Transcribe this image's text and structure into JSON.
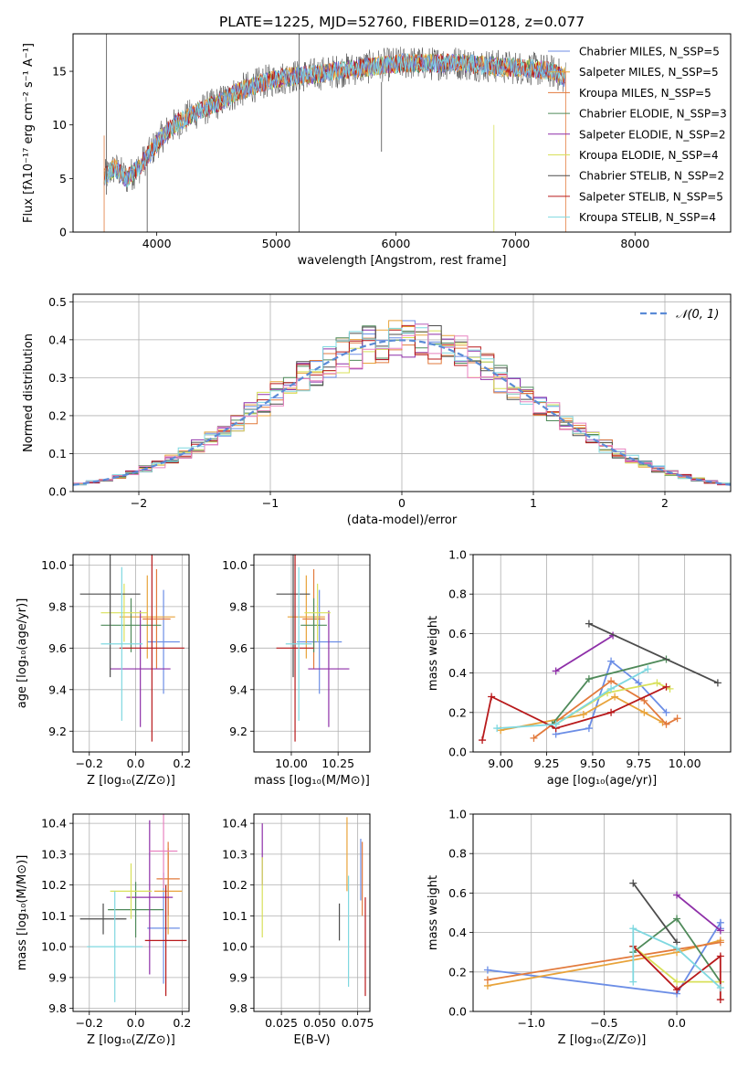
{
  "chart_data": [
    {
      "id": "spectrum",
      "type": "line",
      "title": "PLATE=1225, MJD=52760, FIBERID=0128, z=0.077",
      "xlabel": "wavelength [Angstrom, rest frame]",
      "ylabel": "Flux [fλ10⁻¹⁷ erg cm⁻² s⁻¹ A⁻¹]",
      "xlim": [
        3300,
        8800
      ],
      "ylim": [
        0,
        18.5
      ],
      "xticks": [
        4000,
        5000,
        6000,
        7000,
        8000
      ],
      "yticks": [
        0,
        5,
        10,
        15
      ],
      "grid": false,
      "legend_position": "right",
      "continuum": {
        "x": [
          3550,
          3650,
          3750,
          3850,
          3950,
          4050,
          4150,
          4300,
          4500,
          4700,
          4900,
          5100,
          5300,
          5500,
          5700,
          5900,
          6100,
          6300,
          6500,
          6700,
          6900,
          7100,
          7300,
          7400
        ],
        "y": [
          5.0,
          6.0,
          5.0,
          6.0,
          7.5,
          9.0,
          10.0,
          11.0,
          12.0,
          13.2,
          14.0,
          14.5,
          14.7,
          15.0,
          15.3,
          15.6,
          15.8,
          15.7,
          15.8,
          15.6,
          15.4,
          15.3,
          15.0,
          14.5
        ]
      },
      "series": [
        {
          "name": "Chabrier MILES, N_SSP=5",
          "color": "#6c8ee6"
        },
        {
          "name": "Salpeter MILES, N_SSP=5",
          "color": "#e8a33a"
        },
        {
          "name": "Kroupa MILES, N_SSP=5",
          "color": "#e27a3c"
        },
        {
          "name": "Chabrier ELODIE, N_SSP=3",
          "color": "#4f8a5a"
        },
        {
          "name": "Salpeter ELODIE, N_SSP=2",
          "color": "#8e2fa8"
        },
        {
          "name": "Kroupa ELODIE, N_SSP=4",
          "color": "#d8e05a"
        },
        {
          "name": "Chabrier STELIB, N_SSP=2",
          "color": "#4c4c4c"
        },
        {
          "name": "Salpeter STELIB, N_SSP=5",
          "color": "#b8191b"
        },
        {
          "name": "Kroupa STELIB, N_SSP=4",
          "color": "#7fd8e0"
        }
      ]
    },
    {
      "id": "residuals",
      "type": "histogram",
      "xlabel": "(data-model)/error",
      "ylabel": "Normed distribution",
      "xlim": [
        -2.5,
        2.5
      ],
      "ylim": [
        0,
        0.52
      ],
      "xticks": [
        -2,
        -1,
        0,
        1,
        2
      ],
      "xtick_labels": [
        "−2",
        "−1",
        "0",
        "1",
        "2"
      ],
      "yticks": [
        0.0,
        0.1,
        0.2,
        0.3,
        0.4,
        0.5
      ],
      "grid": true,
      "bins": {
        "start": -2.5,
        "width": 0.1,
        "count": 50
      },
      "reference": {
        "name": "𝒩(0, 1)",
        "color": "#5b8bd6",
        "mean": 0,
        "sigma": 1
      },
      "legend_position": "top-right"
    },
    {
      "id": "age-Z",
      "type": "errorbar",
      "xlabel": "Z [log₁₀(Z/Z⊙)]",
      "ylabel": "age  [log₁₀(age/yr)]",
      "xlim": [
        -0.27,
        0.23
      ],
      "ylim": [
        9.1,
        10.05
      ],
      "xticks": [
        -0.2,
        0.0,
        0.2
      ],
      "xtick_labels": [
        "−0.2",
        "0.0",
        "0.2"
      ],
      "yticks": [
        9.2,
        9.4,
        9.6,
        9.8,
        10.0
      ],
      "grid": true,
      "points": [
        {
          "series": "Chabrier MILES",
          "x": 0.12,
          "y": 9.63,
          "xerr": 0.07,
          "yerr": 0.25
        },
        {
          "series": "Salpeter MILES",
          "x": 0.05,
          "y": 9.75,
          "xerr": 0.12,
          "yerr": 0.2
        },
        {
          "series": "Kroupa MILES",
          "x": 0.09,
          "y": 9.74,
          "xerr": 0.06,
          "yerr": 0.24
        },
        {
          "series": "Chabrier ELODIE",
          "x": -0.02,
          "y": 9.71,
          "xerr": 0.13,
          "yerr": 0.13
        },
        {
          "series": "Salpeter ELODIE",
          "x": 0.02,
          "y": 9.5,
          "xerr": 0.13,
          "yerr": 0.28
        },
        {
          "series": "Kroupa ELODIE",
          "x": -0.05,
          "y": 9.77,
          "xerr": 0.1,
          "yerr": 0.14
        },
        {
          "series": "Chabrier STELIB",
          "x": -0.11,
          "y": 9.86,
          "xerr": 0.13,
          "yerr": 0.4
        },
        {
          "series": "Salpeter STELIB",
          "x": 0.07,
          "y": 9.6,
          "xerr": 0.14,
          "yerr": 0.45
        },
        {
          "series": "Kroupa STELIB",
          "x": -0.06,
          "y": 9.62,
          "xerr": 0.09,
          "yerr": 0.37
        }
      ]
    },
    {
      "id": "age-mass",
      "type": "errorbar",
      "xlabel": "mass [log₁₀(M/M⊙)]",
      "ylabel": "",
      "xlim": [
        9.8,
        10.42
      ],
      "ylim": [
        9.1,
        10.05
      ],
      "xticks": [
        10.0,
        10.25
      ],
      "xtick_labels": [
        "10.00",
        "10.25"
      ],
      "yticks": [
        9.2,
        9.4,
        9.6,
        9.8,
        10.0
      ],
      "grid": true,
      "points": [
        {
          "series": "Chabrier MILES",
          "x": 10.15,
          "y": 9.63,
          "xerr": 0.12,
          "yerr": 0.25
        },
        {
          "series": "Salpeter MILES",
          "x": 10.08,
          "y": 9.75,
          "xerr": 0.1,
          "yerr": 0.2
        },
        {
          "series": "Kroupa MILES",
          "x": 10.12,
          "y": 9.74,
          "xerr": 0.06,
          "yerr": 0.24
        },
        {
          "series": "Chabrier ELODIE",
          "x": 10.12,
          "y": 9.71,
          "xerr": 0.07,
          "yerr": 0.13
        },
        {
          "series": "Salpeter ELODIE",
          "x": 10.2,
          "y": 9.5,
          "xerr": 0.11,
          "yerr": 0.28
        },
        {
          "series": "Kroupa ELODIE",
          "x": 10.14,
          "y": 9.77,
          "xerr": 0.07,
          "yerr": 0.14
        },
        {
          "series": "Chabrier STELIB",
          "x": 10.01,
          "y": 9.86,
          "xerr": 0.09,
          "yerr": 0.4
        },
        {
          "series": "Salpeter STELIB",
          "x": 10.02,
          "y": 9.6,
          "xerr": 0.1,
          "yerr": 0.45
        },
        {
          "series": "Kroupa STELIB",
          "x": 10.04,
          "y": 9.62,
          "xerr": 0.07,
          "yerr": 0.37
        }
      ]
    },
    {
      "id": "weight-age",
      "type": "line",
      "xlabel": "age  [log₁₀(age/yr)]",
      "ylabel": "mass weight",
      "xlim": [
        8.85,
        10.25
      ],
      "ylim": [
        0.0,
        1.0
      ],
      "xticks": [
        9.0,
        9.25,
        9.5,
        9.75,
        10.0
      ],
      "xtick_labels": [
        "9.00",
        "9.25",
        "9.50",
        "9.75",
        "10.00"
      ],
      "yticks": [
        0.0,
        0.2,
        0.4,
        0.6,
        0.8,
        1.0
      ],
      "grid": true,
      "series": [
        {
          "name": "Chabrier MILES",
          "x": [
            9.3,
            9.48,
            9.6,
            9.75,
            9.9
          ],
          "y": [
            0.09,
            0.12,
            0.46,
            0.35,
            0.2
          ]
        },
        {
          "name": "Salpeter MILES",
          "x": [
            9.0,
            9.45,
            9.62,
            9.78,
            9.88
          ],
          "y": [
            0.11,
            0.19,
            0.28,
            0.2,
            0.15
          ]
        },
        {
          "name": "Kroupa MILES",
          "x": [
            9.18,
            9.6,
            9.78,
            9.9,
            9.96
          ],
          "y": [
            0.07,
            0.36,
            0.26,
            0.14,
            0.17
          ]
        },
        {
          "name": "Chabrier ELODIE",
          "x": [
            9.28,
            9.48,
            9.9
          ],
          "y": [
            0.14,
            0.37,
            0.47
          ]
        },
        {
          "name": "Salpeter ELODIE",
          "x": [
            9.3,
            9.61
          ],
          "y": [
            0.41,
            0.59
          ]
        },
        {
          "name": "Kroupa ELODIE",
          "x": [
            9.3,
            9.58,
            9.85,
            9.92
          ],
          "y": [
            0.14,
            0.3,
            0.35,
            0.32
          ]
        },
        {
          "name": "Chabrier STELIB",
          "x": [
            9.48,
            10.18
          ],
          "y": [
            0.65,
            0.35
          ]
        },
        {
          "name": "Salpeter STELIB",
          "x": [
            8.9,
            8.95,
            9.3,
            9.6,
            9.9
          ],
          "y": [
            0.06,
            0.28,
            0.12,
            0.2,
            0.33
          ]
        },
        {
          "name": "Kroupa STELIB",
          "x": [
            8.98,
            9.3,
            9.6,
            9.8
          ],
          "y": [
            0.12,
            0.14,
            0.32,
            0.42
          ]
        }
      ]
    },
    {
      "id": "mass-Z",
      "type": "errorbar",
      "xlabel": "Z [log₁₀(Z/Z⊙)]",
      "ylabel": "mass [log₁₀(M/M⊙)]",
      "xlim": [
        -0.27,
        0.23
      ],
      "ylim": [
        9.79,
        10.43
      ],
      "xticks": [
        -0.2,
        0.0,
        0.2
      ],
      "xtick_labels": [
        "−0.2",
        "0.0",
        "0.2"
      ],
      "yticks": [
        9.8,
        9.9,
        10.0,
        10.1,
        10.2,
        10.3,
        10.4
      ],
      "grid": true,
      "points": [
        {
          "series": "Chabrier MILES",
          "x": 0.12,
          "y": 10.06,
          "xerr": 0.07,
          "yerr": 0.18
        },
        {
          "series": "Salpeter MILES",
          "x": 0.14,
          "y": 10.18,
          "xerr": 0.06,
          "yerr": 0.14
        },
        {
          "series": "Kroupa MILES",
          "x": 0.14,
          "y": 10.22,
          "xerr": 0.05,
          "yerr": 0.12
        },
        {
          "series": "Chabrier ELODIE",
          "x": 0.0,
          "y": 10.12,
          "xerr": 0.12,
          "yerr": 0.09
        },
        {
          "series": "Salpeter ELODIE",
          "x": 0.06,
          "y": 10.16,
          "xerr": 0.1,
          "yerr": 0.25
        },
        {
          "series": "Kroupa ELODIE",
          "x": -0.02,
          "y": 10.18,
          "xerr": 0.09,
          "yerr": 0.09
        },
        {
          "series": "Chabrier STELIB",
          "x": -0.14,
          "y": 10.09,
          "xerr": 0.1,
          "yerr": 0.05
        },
        {
          "series": "Salpeter STELIB",
          "x": 0.13,
          "y": 10.02,
          "xerr": 0.09,
          "yerr": 0.18
        },
        {
          "series": "Kroupa STELIB",
          "x": -0.09,
          "y": 10.0,
          "xerr": 0.12,
          "yerr": 0.18
        },
        {
          "series": "Kroupa MILES (hi)",
          "x": 0.12,
          "y": 10.31,
          "xerr": 0.06,
          "yerr": 0.12
        }
      ]
    },
    {
      "id": "mass-EBV",
      "type": "errorbar",
      "xlabel": "E(B-V)",
      "ylabel": "",
      "xlim": [
        0.007,
        0.083
      ],
      "ylim": [
        9.79,
        10.43
      ],
      "xticks": [
        0.025,
        0.05,
        0.075
      ],
      "xtick_labels": [
        "0.025",
        "0.050",
        "0.075"
      ],
      "yticks": [
        9.8,
        9.9,
        10.0,
        10.1,
        10.2,
        10.3,
        10.4
      ],
      "grid": true,
      "points": [
        {
          "series": "Salpeter ELODIE",
          "x": 0.0125,
          "y": 10.3,
          "yerr": 0.1
        },
        {
          "series": "Kroupa ELODIE",
          "x": 0.0125,
          "y": 10.16,
          "yerr": 0.13
        },
        {
          "series": "Chabrier STELIB",
          "x": 0.063,
          "y": 10.08,
          "yerr": 0.06
        },
        {
          "series": "Salpeter MILES",
          "x": 0.068,
          "y": 10.3,
          "yerr": 0.12
        },
        {
          "series": "Kroupa STELIB",
          "x": 0.069,
          "y": 10.05,
          "yerr": 0.18
        },
        {
          "series": "Chabrier MILES",
          "x": 0.077,
          "y": 10.25,
          "yerr": 0.1
        },
        {
          "series": "Salpeter STELIB",
          "x": 0.08,
          "y": 10.0,
          "yerr": 0.16
        },
        {
          "series": "Kroupa MILES",
          "x": 0.078,
          "y": 10.22,
          "yerr": 0.12
        }
      ]
    },
    {
      "id": "weight-Z",
      "type": "line",
      "xlabel": "Z [log₁₀(Z/Z⊙)]",
      "ylabel": "mass weight",
      "xlim": [
        -1.4,
        0.37
      ],
      "ylim": [
        0.0,
        1.0
      ],
      "xticks": [
        -1.0,
        -0.5,
        0.0
      ],
      "xtick_labels": [
        "−1.0",
        "−0.5",
        "0.0"
      ],
      "yticks": [
        0.0,
        0.2,
        0.4,
        0.6,
        0.8,
        1.0
      ],
      "grid": true,
      "series": [
        {
          "name": "Chabrier MILES",
          "x": [
            -1.3,
            0.0,
            0.3,
            0.3
          ],
          "y": [
            0.21,
            0.09,
            0.45,
            0.42
          ]
        },
        {
          "name": "Salpeter MILES",
          "x": [
            -1.3,
            0.0,
            0.3
          ],
          "y": [
            0.13,
            0.3,
            0.36
          ]
        },
        {
          "name": "Kroupa MILES",
          "x": [
            -1.3,
            0.3
          ],
          "y": [
            0.16,
            0.35
          ]
        },
        {
          "name": "Chabrier ELODIE",
          "x": [
            -0.3,
            0.0,
            0.3
          ],
          "y": [
            0.3,
            0.47,
            0.15
          ]
        },
        {
          "name": "Salpeter ELODIE",
          "x": [
            0.0,
            0.3
          ],
          "y": [
            0.59,
            0.41
          ]
        },
        {
          "name": "Kroupa ELODIE",
          "x": [
            -0.3,
            0.0,
            0.3
          ],
          "y": [
            0.33,
            0.15,
            0.15
          ]
        },
        {
          "name": "Chabrier STELIB",
          "x": [
            -0.3,
            0.0
          ],
          "y": [
            0.65,
            0.35
          ]
        },
        {
          "name": "Salpeter STELIB",
          "x": [
            -0.3,
            0.0,
            0.3,
            0.3
          ],
          "y": [
            0.33,
            0.11,
            0.28,
            0.06
          ]
        },
        {
          "name": "Kroupa STELIB",
          "x": [
            -0.3,
            -0.3,
            0.0,
            0.3
          ],
          "y": [
            0.15,
            0.42,
            0.32,
            0.12
          ]
        }
      ]
    }
  ]
}
